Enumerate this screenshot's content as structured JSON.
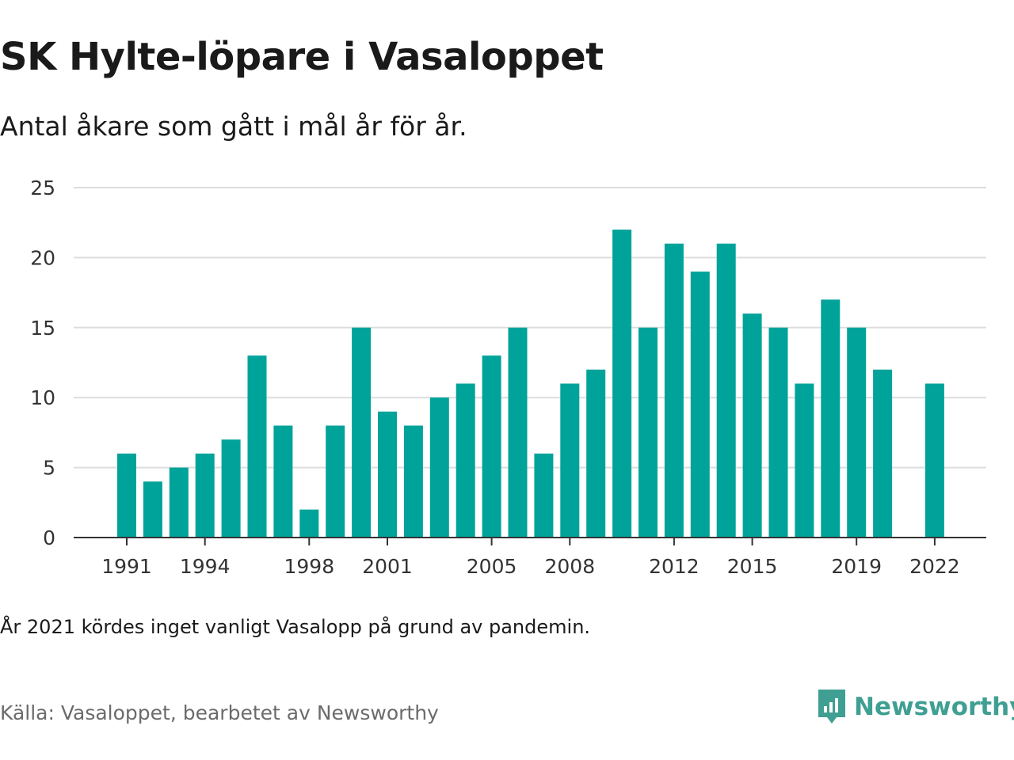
{
  "title": "SK Hylte-löpare i Vasaloppet",
  "subtitle": "Antal åkare som gått i mål år för år.",
  "note": "År 2021 kördes inget vanligt Vasalopp på grund av pandemin.",
  "source": "Källa: Vasaloppet, bearbetet av Newsworthy",
  "brand": {
    "name": "Newsworthy",
    "icon": "newsworthy-logo-icon"
  },
  "colors": {
    "bar": "#00a39a",
    "grid": "#dddddd",
    "axis": "#333333",
    "brand": "#3f9f92"
  },
  "chart_data": {
    "type": "bar",
    "x": [
      1991,
      1992,
      1993,
      1994,
      1995,
      1996,
      1997,
      1998,
      1999,
      2000,
      2001,
      2002,
      2003,
      2004,
      2005,
      2006,
      2007,
      2008,
      2009,
      2010,
      2011,
      2012,
      2013,
      2014,
      2015,
      2016,
      2017,
      2018,
      2019,
      2020,
      2021,
      2022
    ],
    "values": [
      6,
      4,
      5,
      6,
      7,
      13,
      8,
      2,
      8,
      15,
      9,
      8,
      10,
      11,
      13,
      15,
      6,
      11,
      12,
      22,
      15,
      21,
      19,
      21,
      16,
      15,
      11,
      17,
      15,
      12,
      null,
      11
    ],
    "x_tick_labels": [
      1991,
      1994,
      1998,
      2001,
      2005,
      2008,
      2012,
      2015,
      2019,
      2022
    ],
    "y_ticks": [
      0,
      5,
      10,
      15,
      20,
      25
    ],
    "ylim": [
      0,
      25
    ],
    "grid": true,
    "xlabel": "",
    "ylabel": ""
  }
}
